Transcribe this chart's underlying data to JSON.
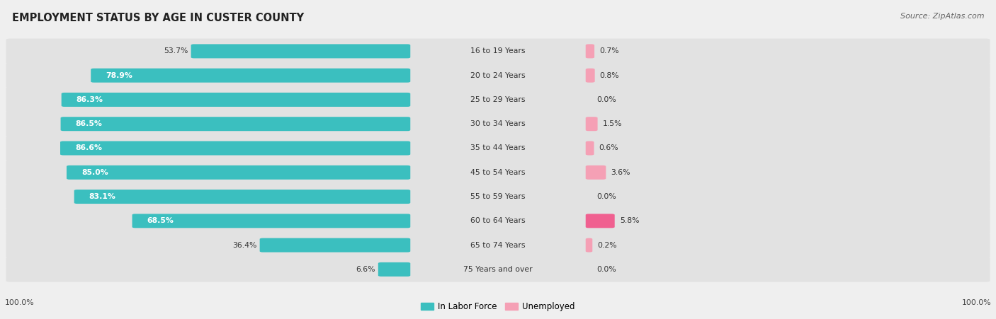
{
  "title": "EMPLOYMENT STATUS BY AGE IN CUSTER COUNTY",
  "source": "Source: ZipAtlas.com",
  "categories": [
    "16 to 19 Years",
    "20 to 24 Years",
    "25 to 29 Years",
    "30 to 34 Years",
    "35 to 44 Years",
    "45 to 54 Years",
    "55 to 59 Years",
    "60 to 64 Years",
    "65 to 74 Years",
    "75 Years and over"
  ],
  "labor_force": [
    53.7,
    78.9,
    86.3,
    86.5,
    86.6,
    85.0,
    83.1,
    68.5,
    36.4,
    6.6
  ],
  "unemployed": [
    0.7,
    0.8,
    0.0,
    1.5,
    0.6,
    3.6,
    0.0,
    5.8,
    0.2,
    0.0
  ],
  "labor_force_color": "#3bbfbf",
  "unemployed_color_light": "#f5a0b5",
  "unemployed_color_bright": "#f06090",
  "background_color": "#efefef",
  "row_bg_color": "#e2e2e2",
  "legend_labor": "In Labor Force",
  "legend_unemployed": "Unemployed",
  "max_value": 100.0,
  "label_inside_threshold": 60.0
}
